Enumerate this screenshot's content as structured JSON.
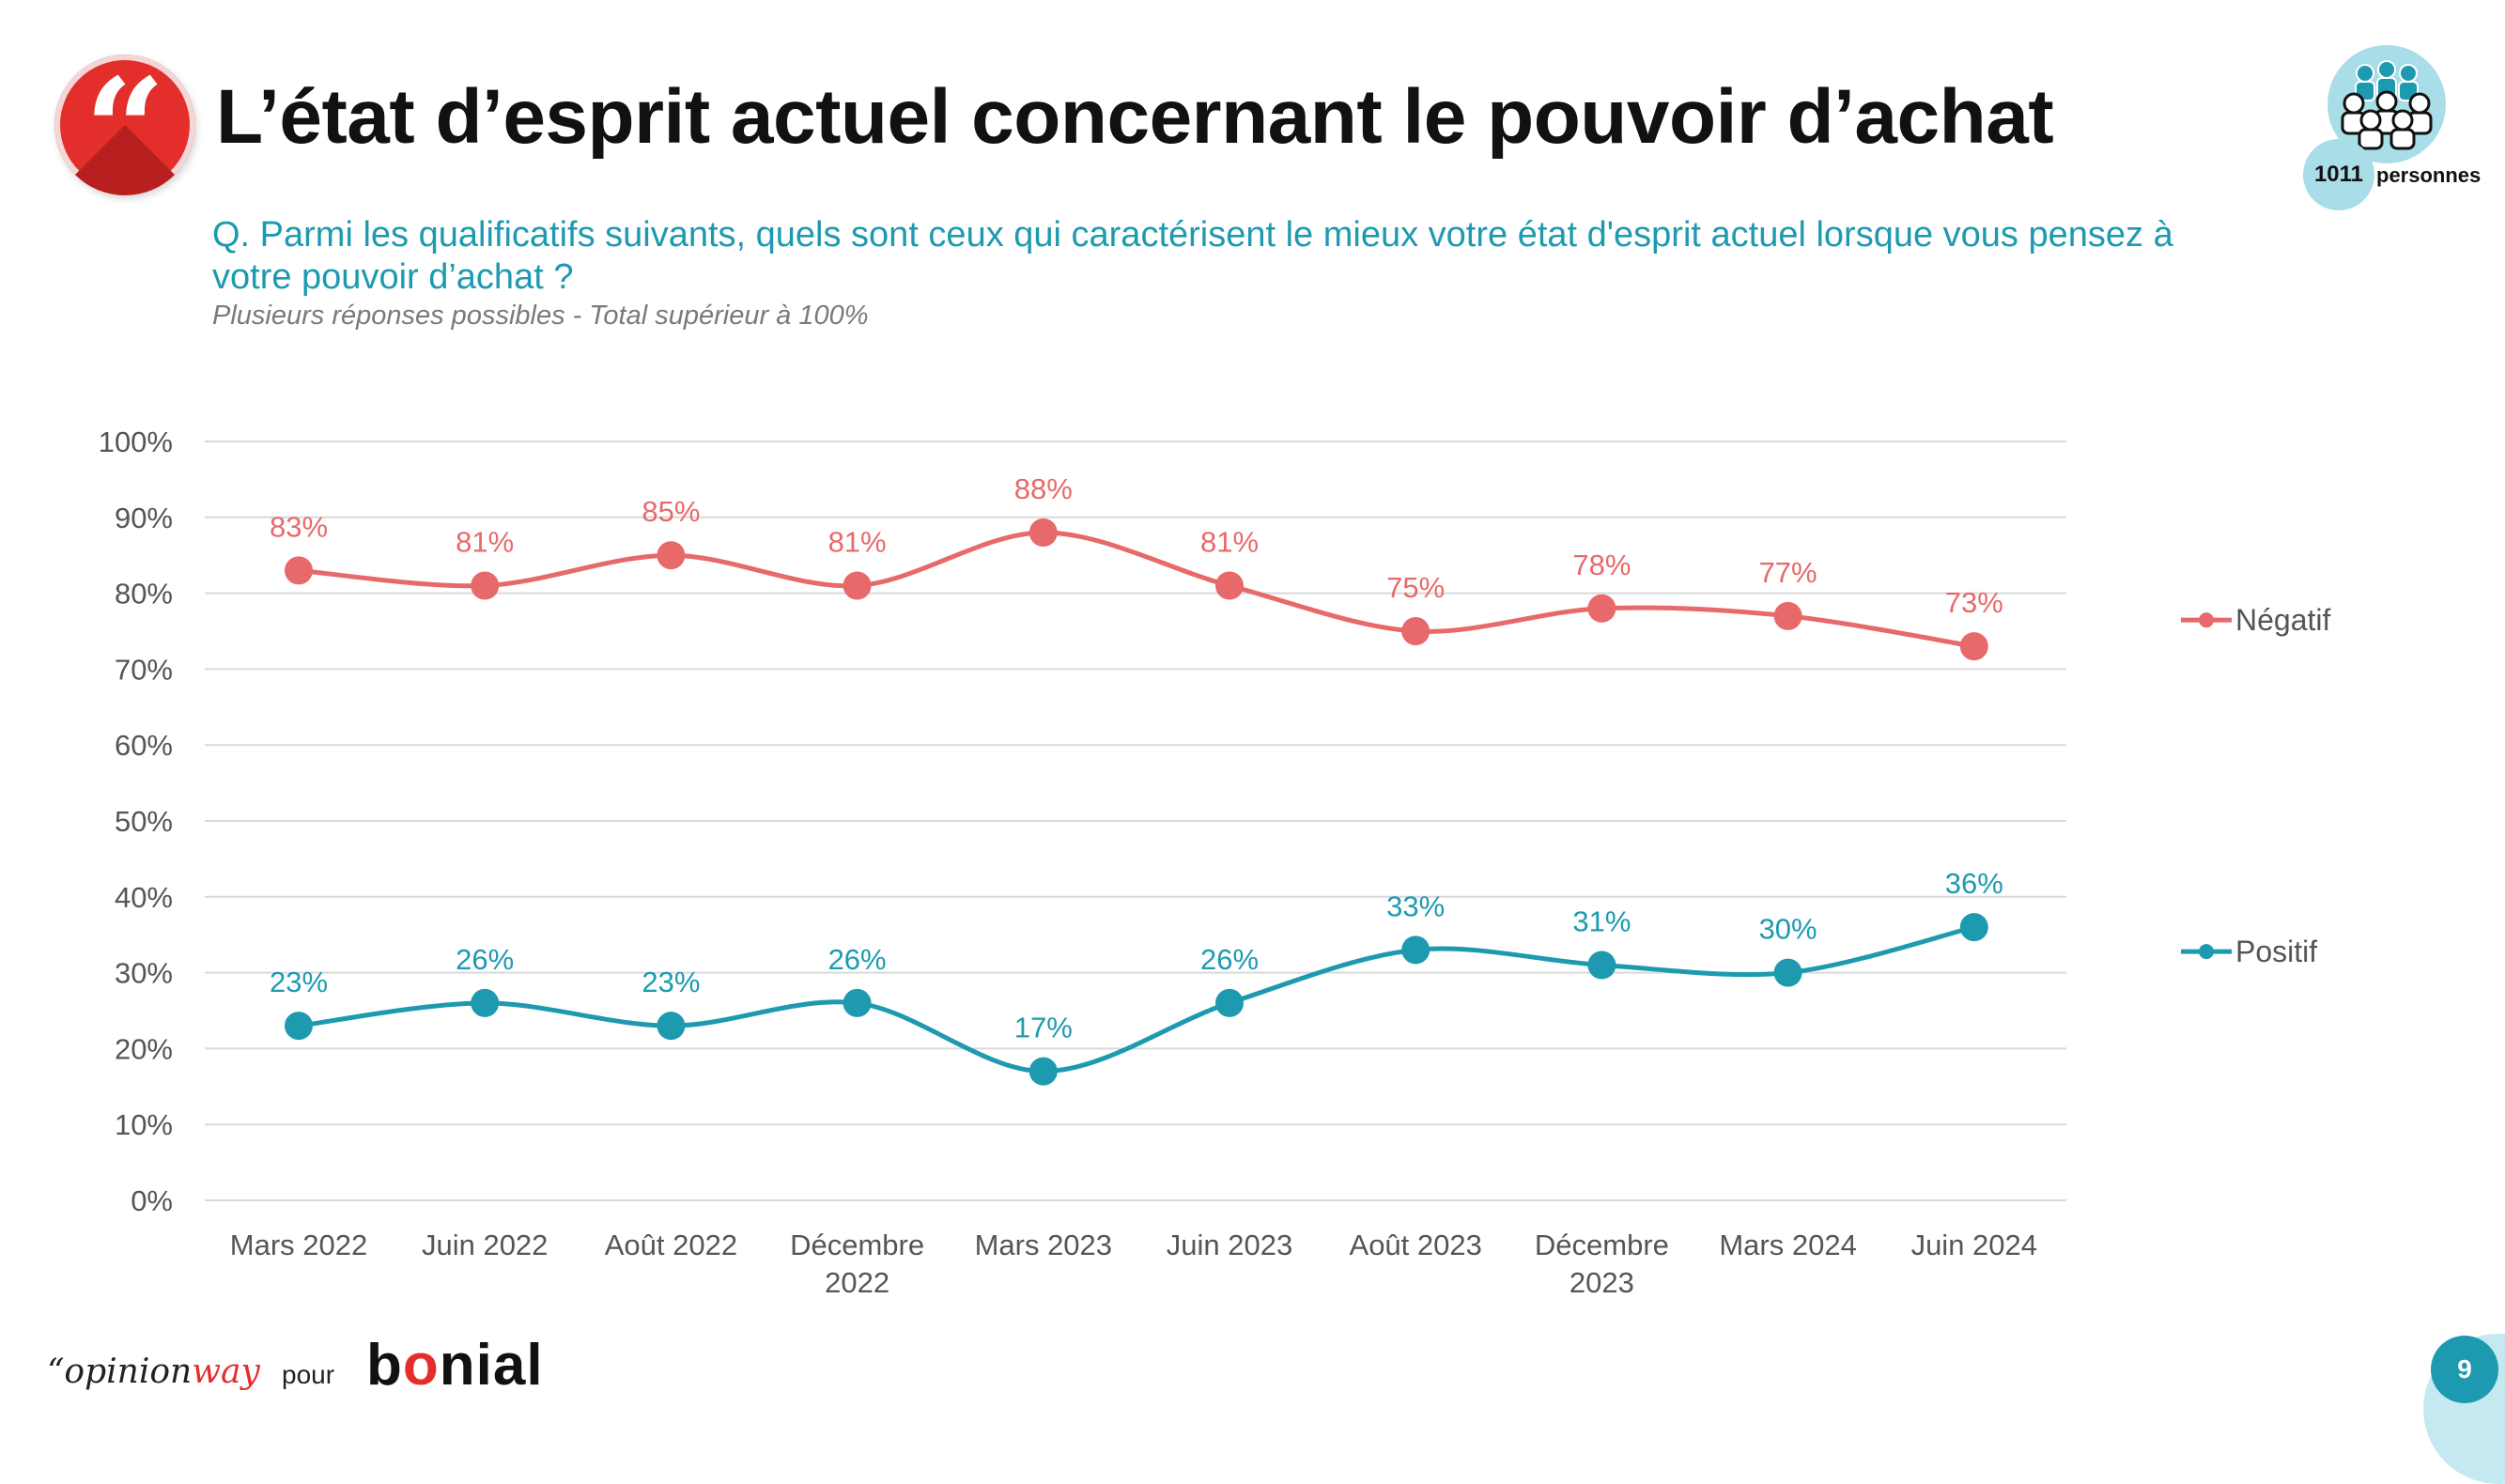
{
  "header": {
    "title": "L’état d’esprit actuel concernant le pouvoir d’achat",
    "quote_icon": "quote-icon",
    "question": "Q. Parmi les qualificatifs suivants, quels sont ceux qui caractérisent le mieux votre état d'esprit actuel lorsque vous pensez à votre pouvoir d’achat ?",
    "note": "Plusieurs réponses possibles - Total supérieur à 100%"
  },
  "sample": {
    "icon": "people-group-icon",
    "count": "1011",
    "label": "personnes"
  },
  "chart_data": {
    "type": "line",
    "categories": [
      "Mars 2022",
      "Juin 2022",
      "Août 2022",
      "Décembre 2022",
      "Mars 2023",
      "Juin 2023",
      "Août 2023",
      "Décembre 2023",
      "Mars 2024",
      "Juin 2024"
    ],
    "category_lines": [
      [
        "Mars 2022"
      ],
      [
        "Juin 2022"
      ],
      [
        "Août 2022"
      ],
      [
        "Décembre",
        "2022"
      ],
      [
        "Mars 2023"
      ],
      [
        "Juin 2023"
      ],
      [
        "Août 2023"
      ],
      [
        "Décembre",
        "2023"
      ],
      [
        "Mars 2024"
      ],
      [
        "Juin 2024"
      ]
    ],
    "series": [
      {
        "name": "Négatif",
        "color": "#e8696a",
        "values": [
          83,
          81,
          85,
          81,
          88,
          81,
          75,
          78,
          77,
          73
        ]
      },
      {
        "name": "Positif",
        "color": "#1d9ab0",
        "values": [
          23,
          26,
          23,
          26,
          17,
          26,
          33,
          31,
          30,
          36
        ]
      }
    ],
    "ylim": [
      0,
      100
    ],
    "yticks": [
      0,
      10,
      20,
      30,
      40,
      50,
      60,
      70,
      80,
      90,
      100
    ],
    "value_suffix": "%",
    "grid": true,
    "legend_position": "right",
    "smooth": true
  },
  "footer": {
    "brand_left_prefix": "“opinion",
    "brand_left_accent": "way",
    "pour": "pour",
    "brand_right_b": "b",
    "brand_right_o": "o",
    "brand_right_rest": "nial",
    "page_number": "9"
  }
}
